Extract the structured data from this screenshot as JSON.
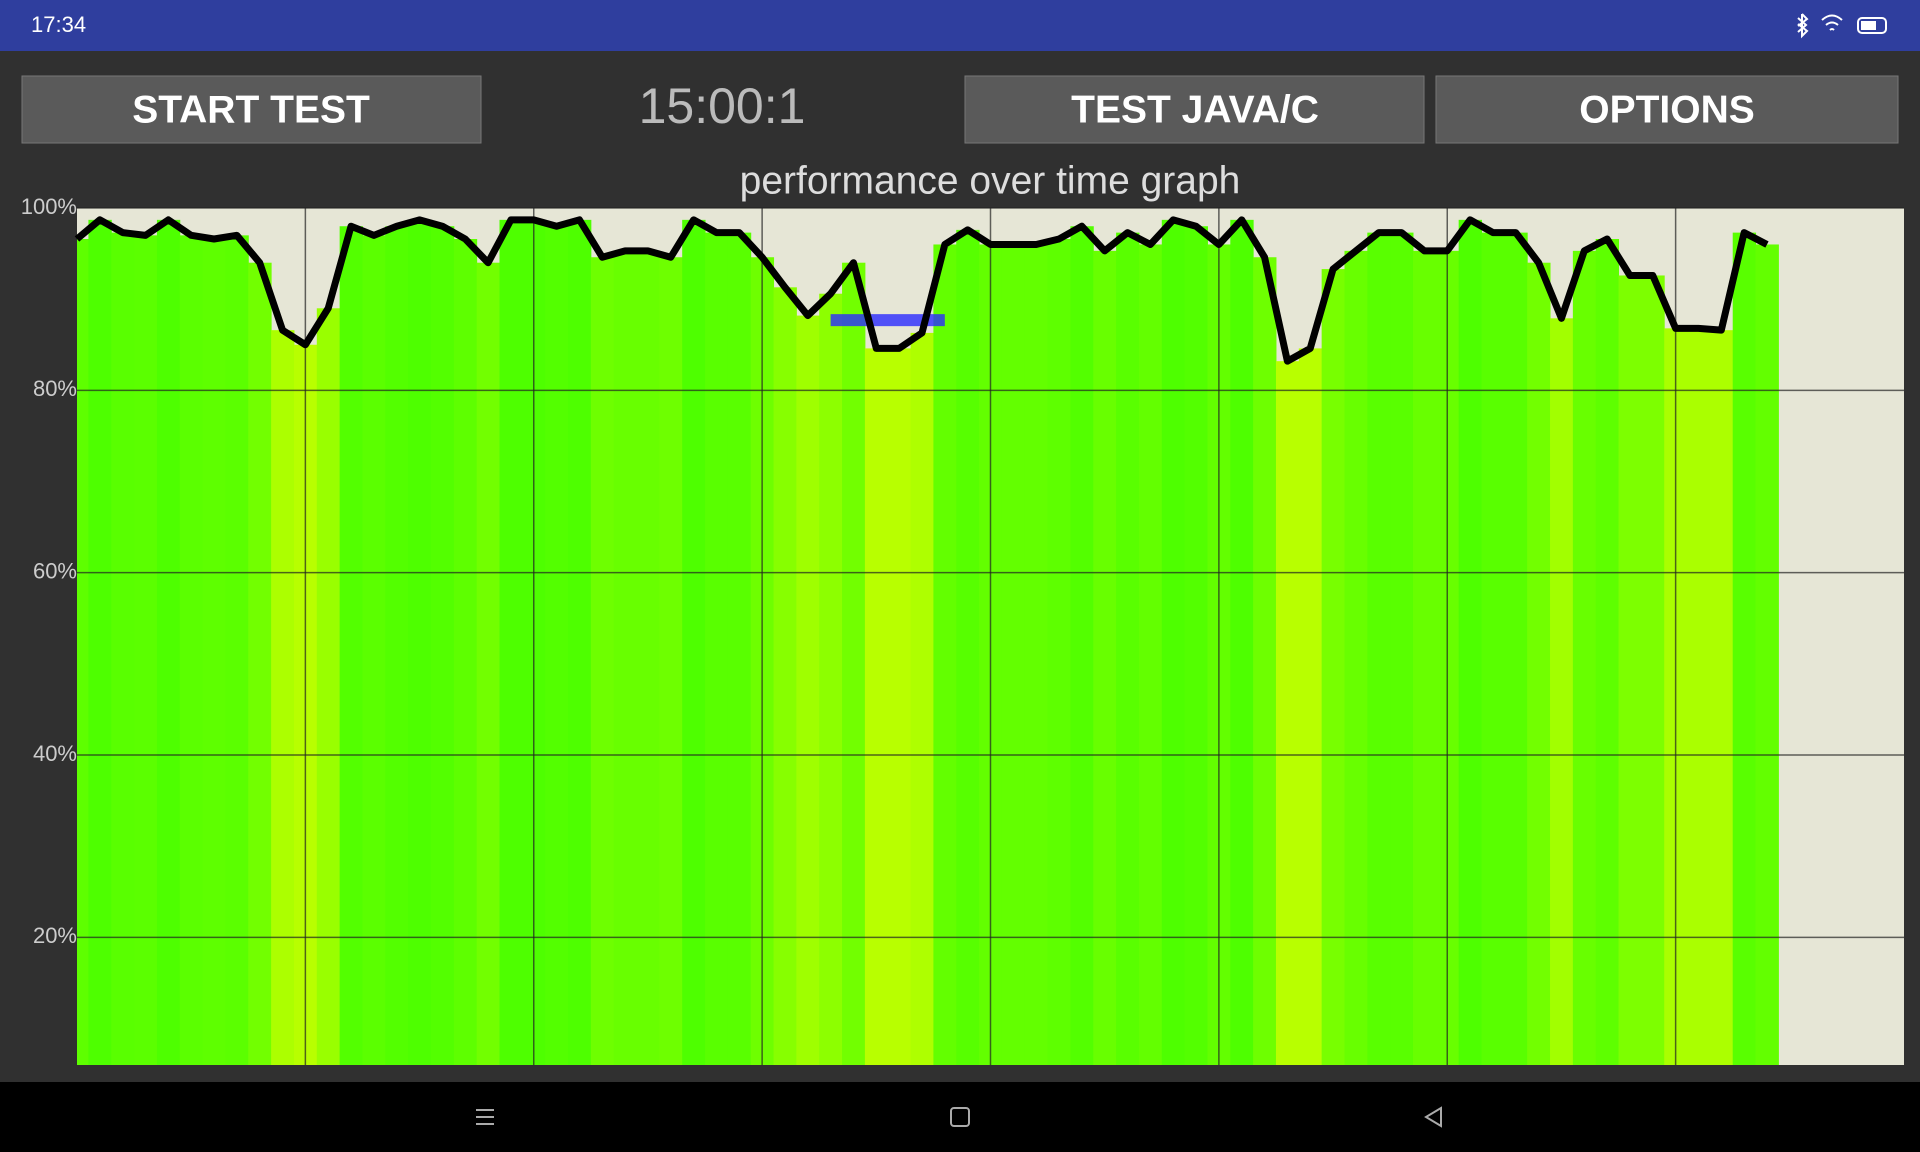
{
  "status": {
    "time": "17:34"
  },
  "buttons": [
    "START TEST",
    "TEST JAVA/C",
    "OPTIONS"
  ],
  "timer": "15:00:1",
  "chart_data": {
    "type": "line",
    "title": "performance over time graph",
    "x": [
      0,
      0.1,
      0.2,
      0.3,
      0.4,
      0.5,
      0.6,
      0.7,
      0.8,
      0.9,
      1.0,
      1.1,
      1.2,
      1.3,
      1.4,
      1.5,
      1.6,
      1.7,
      1.8,
      1.9,
      2.0,
      2.1,
      2.2,
      2.3,
      2.4,
      2.5,
      2.6,
      2.7,
      2.8,
      2.9,
      3.0,
      3.1,
      3.2,
      3.3,
      3.4,
      3.5,
      3.6,
      3.7,
      3.8,
      3.9,
      4.0,
      4.1,
      4.2,
      4.3,
      4.4,
      4.5,
      4.6,
      4.7,
      4.8,
      4.9,
      5.0,
      5.1,
      5.2,
      5.3,
      5.4,
      5.5,
      5.6,
      5.7,
      5.8,
      5.9,
      6.0,
      6.1,
      6.2,
      6.3,
      6.4,
      6.5,
      6.6,
      6.7,
      6.8,
      6.9,
      7.0,
      7.1,
      7.2,
      7.3,
      7.4
    ],
    "values": [
      96.6,
      98.7,
      97.3,
      97,
      98.7,
      97,
      96.6,
      97,
      94,
      86.6,
      85,
      89,
      98,
      97,
      98,
      98.7,
      98,
      96.6,
      94,
      98.7,
      98.7,
      98,
      98.7,
      94.6,
      95.3,
      95.3,
      94.6,
      98.7,
      97.3,
      97.3,
      94.6,
      91.3,
      88.2,
      90.6,
      94,
      84.6,
      84.6,
      86.3,
      96,
      97.6,
      96,
      96,
      96,
      96.6,
      98,
      95.3,
      97.3,
      96,
      98.7,
      98,
      96,
      98.7,
      94.6,
      83.2,
      84.6,
      93.3,
      95.3,
      97.3,
      97.3,
      95.3,
      95.3,
      98.7,
      97.3,
      97.3,
      94,
      87.9,
      95.3,
      96.6,
      92.6,
      92.6,
      86.8,
      86.8,
      86.6,
      97.3,
      96
    ],
    "color": "#000000",
    "fill_colors": [
      "#44ff00",
      "#b8ff00"
    ],
    "marker": {
      "value": 87.7,
      "x": [
        3.3,
        3.8
      ],
      "color": "#2a2aff"
    },
    "xlim": [
      0,
      8
    ],
    "xticks": [
      1,
      2,
      3,
      4,
      5,
      6,
      7
    ],
    "ylim": [
      6,
      100
    ],
    "yticks": [
      {
        "value": 20,
        "label": "20%"
      },
      {
        "value": 40,
        "label": "40%"
      },
      {
        "value": 60,
        "label": "60%"
      },
      {
        "value": 80,
        "label": "80%"
      },
      {
        "value": 100,
        "label": "100%"
      }
    ],
    "grid": true
  }
}
